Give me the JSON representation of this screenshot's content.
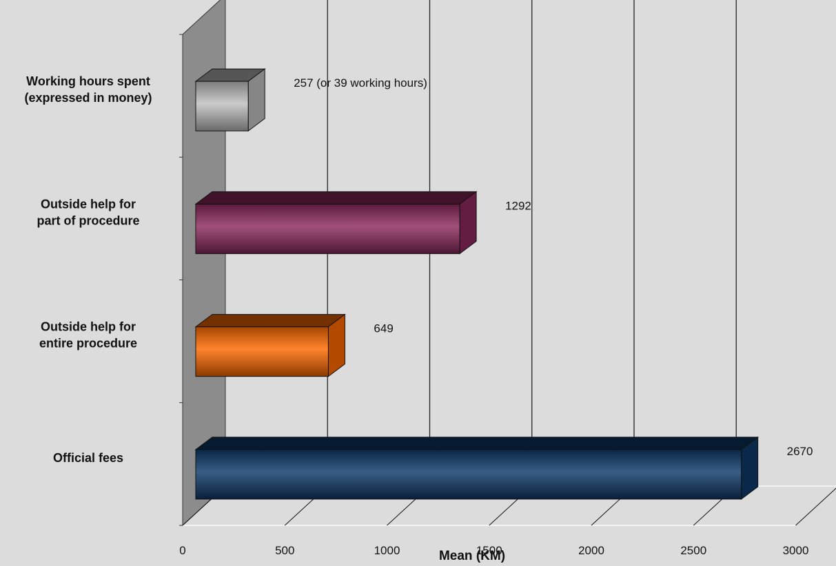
{
  "chart_data": {
    "type": "bar",
    "orientation": "horizontal",
    "style": "3d",
    "categories": [
      "Working hours spent (expressed in money)",
      "Outside help for part of procedure",
      "Outside help for entire procedure",
      "Official fees"
    ],
    "values": [
      257,
      1292,
      649,
      2670
    ],
    "data_labels": [
      "257 (or 39 working hours)",
      "1292",
      "649",
      "2670"
    ],
    "xlabel": "Mean (KM)",
    "ylabel": "",
    "title": "",
    "xlim": [
      0,
      3000
    ],
    "xticks": [
      "0",
      "500",
      "1000",
      "1500",
      "2000",
      "2500",
      "3000"
    ],
    "grid": true,
    "legend": "none",
    "colors": {
      "Working hours spent (expressed in money)": "#c0c0c0",
      "Outside help for part of procedure": "#8e2a5e",
      "Outside help for entire procedure": "#ff6a00",
      "Official fees": "#0e3a6a"
    },
    "background": "#dcdcdc",
    "wall_color": "#8c8c8c"
  }
}
